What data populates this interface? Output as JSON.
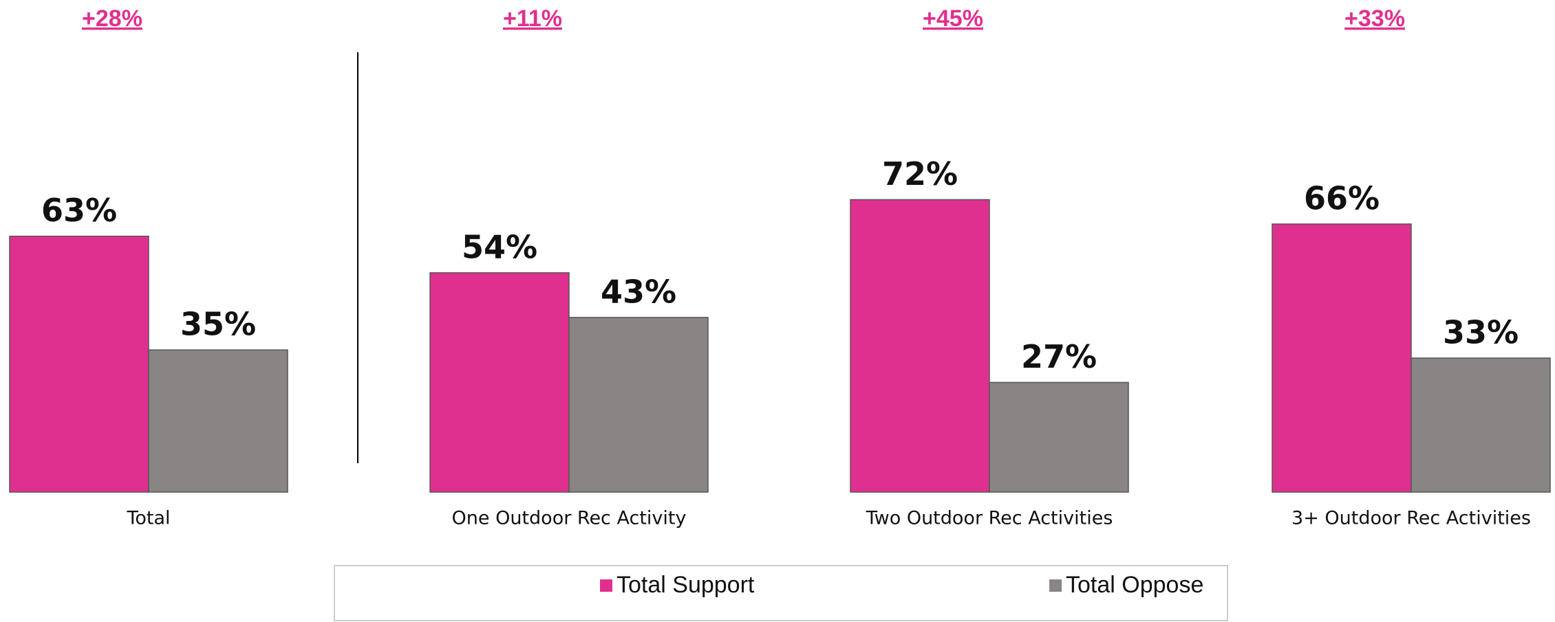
{
  "chart_data": {
    "type": "bar",
    "categories": [
      "Total",
      "One Outdoor Rec Activity",
      "Two Outdoor Rec Activities",
      "3+ Outdoor Rec Activities"
    ],
    "series": [
      {
        "name": "Total Support",
        "color": "#e0308f",
        "values": [
          63,
          54,
          72,
          66
        ],
        "value_labels": [
          "63%",
          "54%",
          "72%",
          "66%"
        ]
      },
      {
        "name": "Total Oppose",
        "color": "#8a8585",
        "values": [
          35,
          43,
          27,
          33
        ],
        "value_labels": [
          "35%",
          "43%",
          "27%",
          "33%"
        ]
      }
    ],
    "annotations": [
      "+28%",
      "+11%",
      "+45%",
      "+33%"
    ]
  }
}
